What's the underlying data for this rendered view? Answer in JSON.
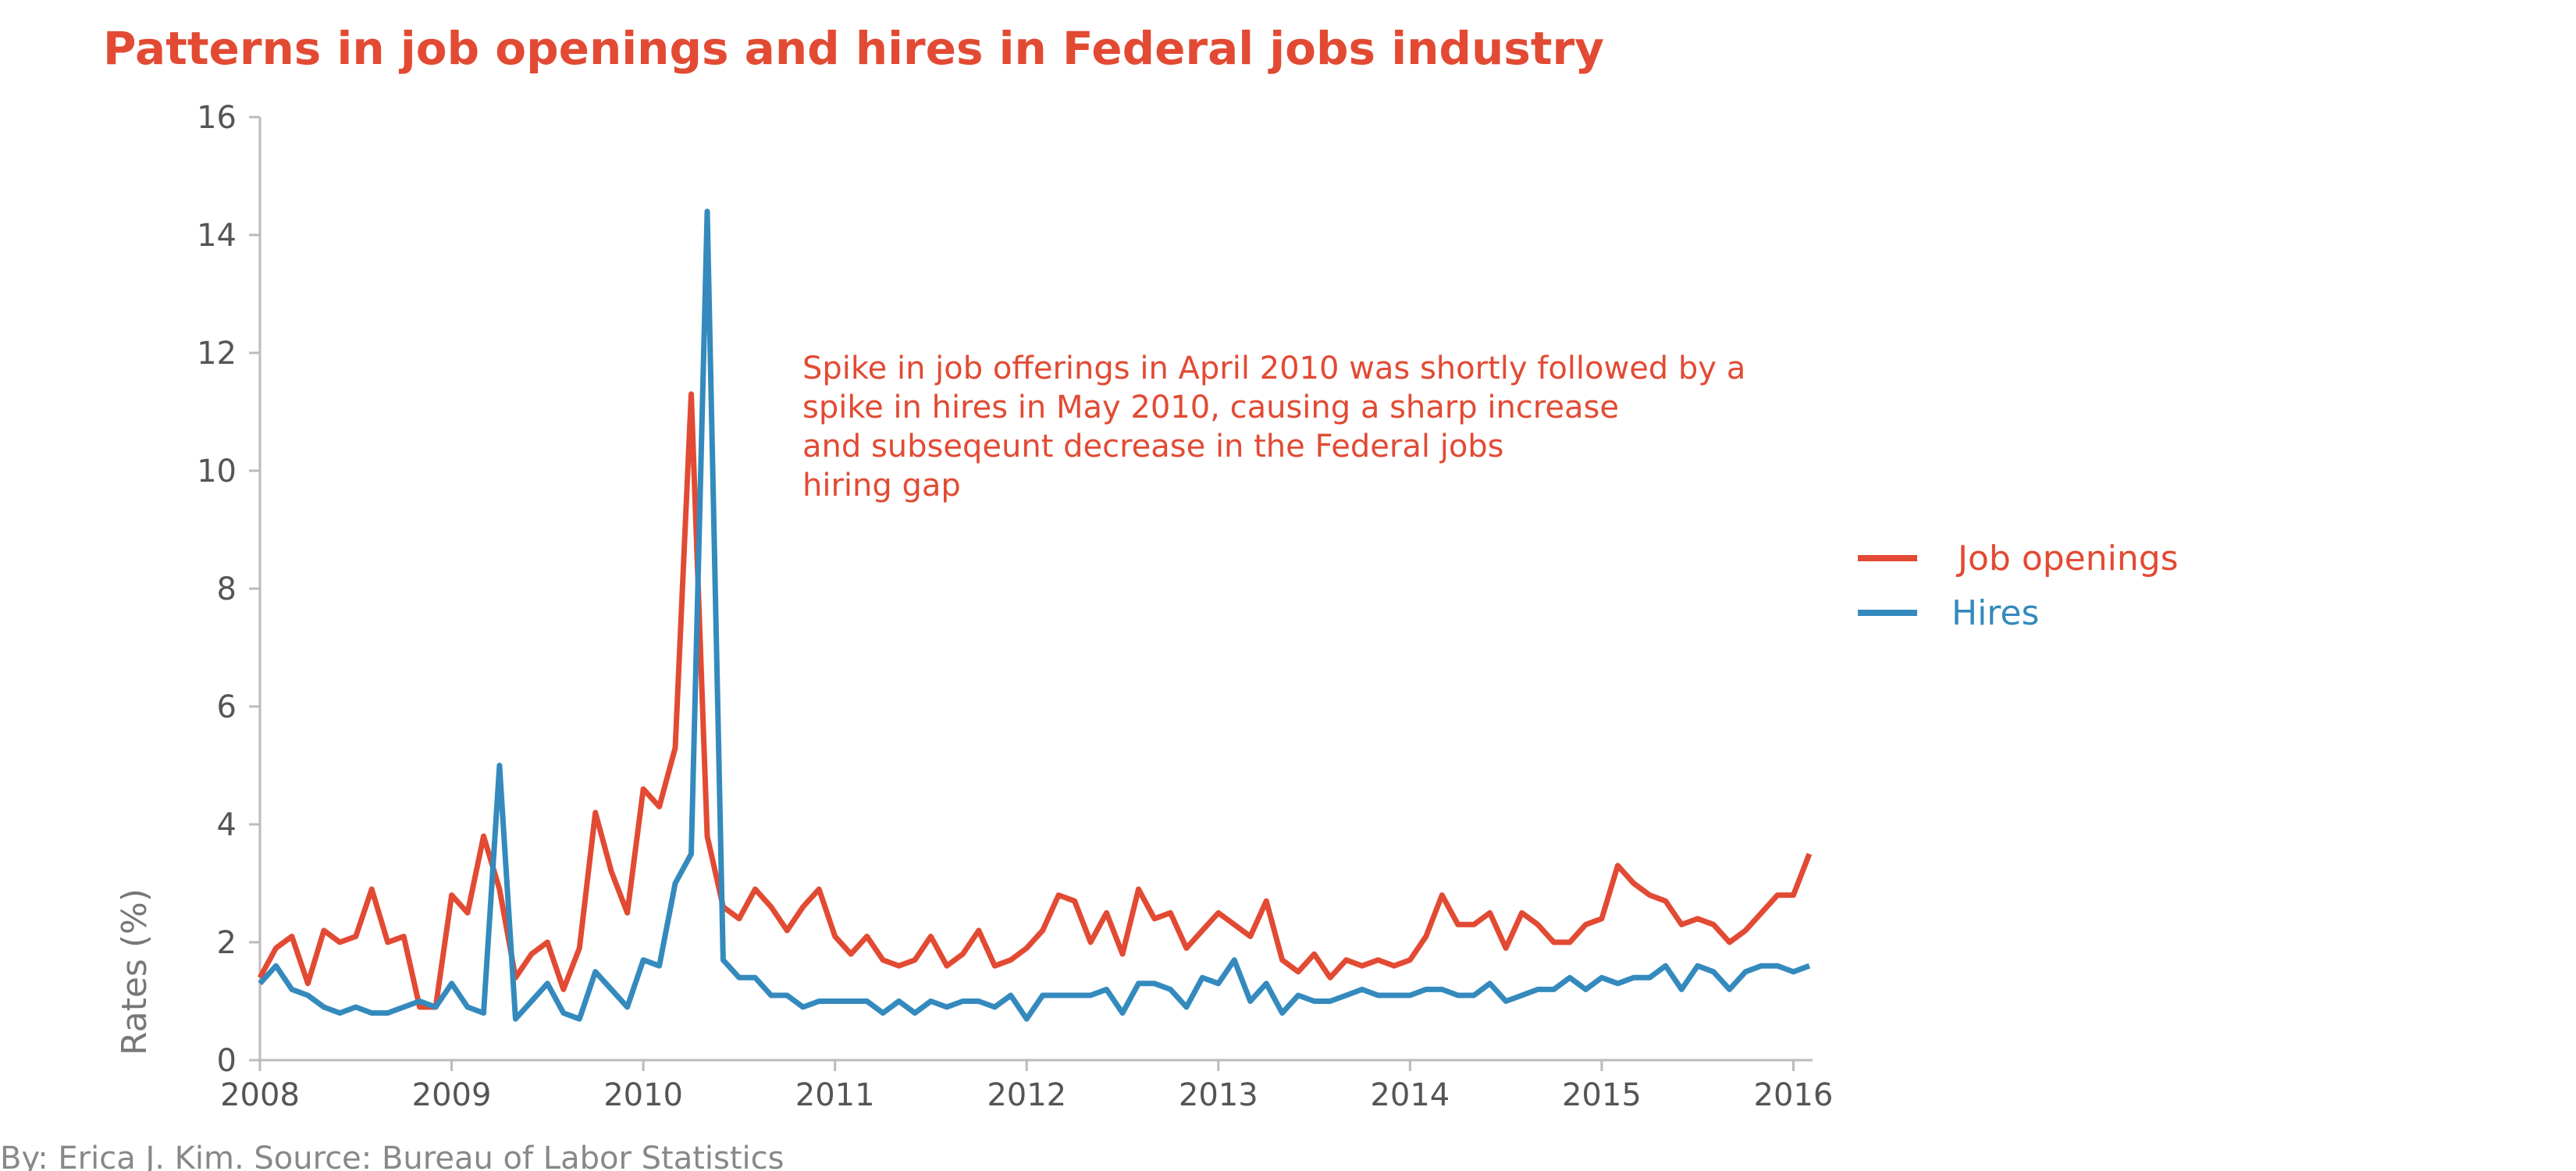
{
  "chart_data": {
    "type": "line",
    "title": "Patterns in job openings and hires in Federal jobs industry",
    "xlabel": "",
    "ylabel": "Rates (%)",
    "xlim": [
      2008,
      2016.1
    ],
    "ylim": [
      0,
      16
    ],
    "x_ticks": [
      "2008",
      "2009",
      "2010",
      "2011",
      "2012",
      "2013",
      "2014",
      "2015",
      "2016"
    ],
    "y_ticks": [
      "0",
      "2",
      "4",
      "6",
      "8",
      "10",
      "12",
      "14",
      "16"
    ],
    "grid": false,
    "legend_position": "right",
    "x_start": "2008-01",
    "x_step": "monthly",
    "annotation": [
      "Spike in job offerings in April 2010 was shortly followed by a",
      "spike in hires in May 2010, causing a sharp increase",
      "and subseqeunt decrease in the Federal jobs",
      "hiring gap"
    ],
    "series": [
      {
        "name": "Job openings",
        "color": "#E24A33",
        "values": [
          1.4,
          1.9,
          2.1,
          1.3,
          2.2,
          2.0,
          2.1,
          2.9,
          2.0,
          2.1,
          0.9,
          0.9,
          2.8,
          2.5,
          3.8,
          2.9,
          1.4,
          1.8,
          2.0,
          1.2,
          1.9,
          4.2,
          3.2,
          2.5,
          4.6,
          4.3,
          5.3,
          11.3,
          3.8,
          2.6,
          2.4,
          2.9,
          2.6,
          2.2,
          2.6,
          2.9,
          2.1,
          1.8,
          2.1,
          1.7,
          1.6,
          1.7,
          2.1,
          1.6,
          1.8,
          2.2,
          1.6,
          1.7,
          1.9,
          2.2,
          2.8,
          2.7,
          2.0,
          2.5,
          1.8,
          2.9,
          2.4,
          2.5,
          1.9,
          2.2,
          2.5,
          2.3,
          2.1,
          2.7,
          1.7,
          1.5,
          1.8,
          1.4,
          1.7,
          1.6,
          1.7,
          1.6,
          1.7,
          2.1,
          2.8,
          2.3,
          2.3,
          2.5,
          1.9,
          2.5,
          2.3,
          2.0,
          2.0,
          2.3,
          2.4,
          3.3,
          3.0,
          2.8,
          2.7,
          2.3,
          2.4,
          2.3,
          2.0,
          2.2,
          2.5,
          2.8,
          2.8,
          3.5
        ]
      },
      {
        "name": "Hires",
        "color": "#348ABD",
        "values": [
          1.3,
          1.6,
          1.2,
          1.1,
          0.9,
          0.8,
          0.9,
          0.8,
          0.8,
          0.9,
          1.0,
          0.9,
          1.3,
          0.9,
          0.8,
          5.0,
          0.7,
          1.0,
          1.3,
          0.8,
          0.7,
          1.5,
          1.2,
          0.9,
          1.7,
          1.6,
          3.0,
          3.5,
          14.4,
          1.7,
          1.4,
          1.4,
          1.1,
          1.1,
          0.9,
          1.0,
          1.0,
          1.0,
          1.0,
          0.8,
          1.0,
          0.8,
          1.0,
          0.9,
          1.0,
          1.0,
          0.9,
          1.1,
          0.7,
          1.1,
          1.1,
          1.1,
          1.1,
          1.2,
          0.8,
          1.3,
          1.3,
          1.2,
          0.9,
          1.4,
          1.3,
          1.7,
          1.0,
          1.3,
          0.8,
          1.1,
          1.0,
          1.0,
          1.1,
          1.2,
          1.1,
          1.1,
          1.1,
          1.2,
          1.2,
          1.1,
          1.1,
          1.3,
          1.0,
          1.1,
          1.2,
          1.2,
          1.4,
          1.2,
          1.4,
          1.3,
          1.4,
          1.4,
          1.6,
          1.2,
          1.6,
          1.5,
          1.2,
          1.5,
          1.6,
          1.6,
          1.5,
          1.6
        ]
      }
    ]
  },
  "credit": "By: Erica J. Kim. Source: Bureau of Labor Statistics"
}
